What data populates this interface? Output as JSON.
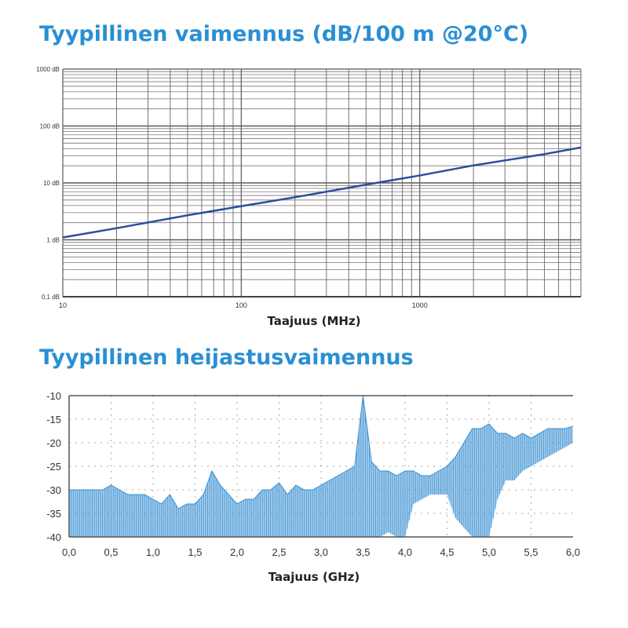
{
  "chart_data": [
    {
      "type": "line",
      "title": "Tyypillinen vaimennus (dB/100 m @20°C)",
      "xlabel": "Taajuus (MHz)",
      "ylabel": "",
      "x_scale": "log",
      "y_scale": "log",
      "xlim": [
        10,
        8000
      ],
      "ylim": [
        0.1,
        1000
      ],
      "x_ticks": [
        {
          "v": 10,
          "label": "10"
        },
        {
          "v": 100,
          "label": "100"
        },
        {
          "v": 1000,
          "label": "1000"
        }
      ],
      "y_ticks": [
        {
          "v": 1000,
          "label": "1000 dB"
        },
        {
          "v": 100,
          "label": "100 dB"
        },
        {
          "v": 10,
          "label": "10 dB"
        },
        {
          "v": 1,
          "label": "1 dB"
        },
        {
          "v": 0.1,
          "label": "0,1 dB"
        }
      ],
      "grid": true,
      "color": "#2b4f9c",
      "series": [
        {
          "x": [
            10,
            20,
            50,
            100,
            200,
            500,
            1000,
            2000,
            5000,
            8000
          ],
          "y": [
            1.1,
            1.6,
            2.7,
            3.9,
            5.6,
            9.3,
            13.5,
            20.3,
            32,
            42
          ]
        }
      ]
    },
    {
      "type": "area",
      "title": "Tyypillinen heijastusvaimennus",
      "xlabel": "Taajuus (GHz)",
      "ylabel": "",
      "xlim": [
        0,
        6
      ],
      "ylim": [
        -40,
        -10
      ],
      "x_ticks": [
        "0,0",
        "0,5",
        "1,0",
        "1,5",
        "2,0",
        "2,5",
        "3,0",
        "3,5",
        "4,0",
        "4,5",
        "5,0",
        "5,5",
        "6,0"
      ],
      "y_ticks": [
        "-10",
        "-15",
        "-20",
        "-25",
        "-30",
        "-35",
        "-40"
      ],
      "grid": "dotted",
      "color": "#3a90d2",
      "series": [
        {
          "x": [
            0.0,
            0.1,
            0.2,
            0.3,
            0.4,
            0.5,
            0.6,
            0.7,
            0.8,
            0.9,
            1.0,
            1.1,
            1.2,
            1.3,
            1.4,
            1.5,
            1.6,
            1.7,
            1.8,
            1.9,
            2.0,
            2.1,
            2.2,
            2.3,
            2.4,
            2.5,
            2.6,
            2.7,
            2.8,
            2.9,
            3.0,
            3.1,
            3.2,
            3.3,
            3.4,
            3.5,
            3.6,
            3.7,
            3.8,
            3.9,
            4.0,
            4.1,
            4.2,
            4.3,
            4.4,
            4.5,
            4.6,
            4.7,
            4.8,
            4.9,
            5.0,
            5.1,
            5.2,
            5.3,
            5.4,
            5.5,
            5.6,
            5.7,
            5.8,
            5.9,
            6.0
          ],
          "max": [
            -30,
            -30,
            -30,
            -30,
            -30,
            -29,
            -30,
            -31,
            -31,
            -31,
            -32,
            -33,
            -31,
            -34,
            -33,
            -33,
            -31,
            -26,
            -29,
            -31,
            -33,
            -32,
            -32,
            -30,
            -30,
            -28.5,
            -31,
            -29,
            -30,
            -30,
            -29,
            -28,
            -27,
            -26,
            -25,
            -10,
            -24,
            -26,
            -26,
            -27,
            -26,
            -26,
            -27,
            -27,
            -26,
            -25,
            -23,
            -20,
            -17,
            -17,
            -16,
            -18,
            -18,
            -19,
            -18,
            -19,
            -18,
            -17,
            -17,
            -17,
            -16.5
          ],
          "min": [
            -40,
            -40,
            -40,
            -40,
            -40,
            -40,
            -40,
            -40,
            -40,
            -40,
            -40,
            -40,
            -40,
            -40,
            -40,
            -40,
            -40,
            -40,
            -40,
            -40,
            -40,
            -40,
            -40,
            -40,
            -40,
            -40,
            -40,
            -40,
            -40,
            -40,
            -40,
            -40,
            -40,
            -40,
            -40,
            -40,
            -40,
            -40,
            -39,
            -40,
            -40,
            -33,
            -32,
            -31,
            -31,
            -31,
            -36,
            -38,
            -40,
            -40,
            -40,
            -32,
            -28,
            -28,
            -26,
            -25,
            -24,
            -23,
            -22,
            -21,
            -20
          ]
        }
      ]
    }
  ]
}
